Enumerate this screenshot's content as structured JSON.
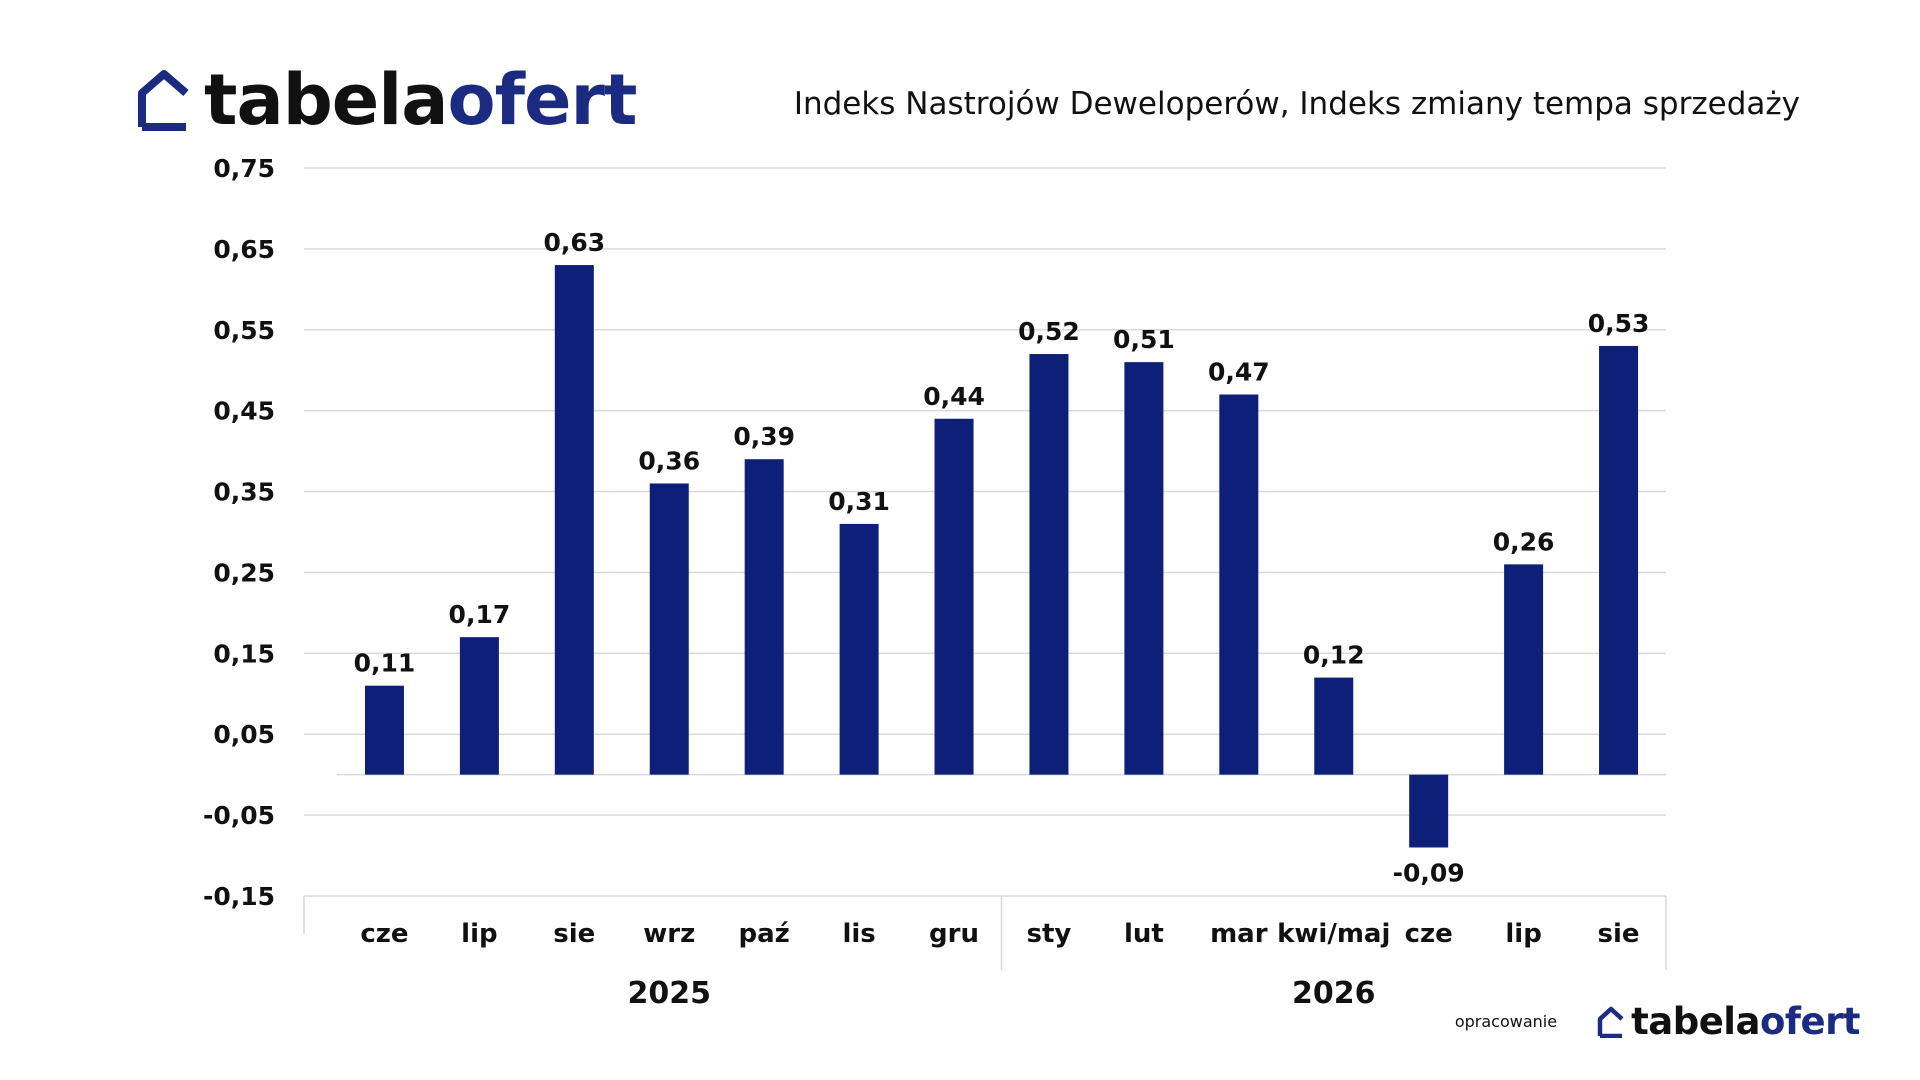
{
  "brand": {
    "logo_part1": "tabela",
    "logo_part2": "ofert",
    "credit_text": "opracowanie",
    "dark_color": "#111111",
    "accent_color": "#1b2b82"
  },
  "chart_data": {
    "type": "bar",
    "title": "Indeks Nastrojów Deweloperów, Indeks zmiany tempa sprzedaży",
    "categories": [
      "cze",
      "lip",
      "sie",
      "wrz",
      "paź",
      "lis",
      "gru",
      "sty",
      "lut",
      "mar",
      "kwi/maj",
      "cze",
      "lip",
      "sie"
    ],
    "year_groups": [
      {
        "label": "2025",
        "count": 7
      },
      {
        "label": "2026",
        "count": 7
      }
    ],
    "values": [
      0.11,
      0.17,
      0.63,
      0.36,
      0.39,
      0.31,
      0.44,
      0.52,
      0.51,
      0.47,
      0.12,
      -0.09,
      0.26,
      0.53
    ],
    "value_labels": [
      "0,11",
      "0,17",
      "0,63",
      "0,36",
      "0,39",
      "0,31",
      "0,44",
      "0,52",
      "0,51",
      "0,47",
      "0,12",
      "-0,09",
      "0,26",
      "0,53"
    ],
    "y_ticks": [
      -0.15,
      -0.05,
      0.05,
      0.15,
      0.25,
      0.35,
      0.45,
      0.55,
      0.65,
      0.75
    ],
    "y_tick_labels": [
      "-0,15",
      "-0,05",
      "0,05",
      "0,15",
      "0,25",
      "0,35",
      "0,45",
      "0,55",
      "0,65",
      "0,75"
    ],
    "ylim": [
      -0.15,
      0.75
    ],
    "grid": true,
    "legend": "none",
    "bar_color": "#0d1f78",
    "grid_color": "#d9d9d9"
  }
}
